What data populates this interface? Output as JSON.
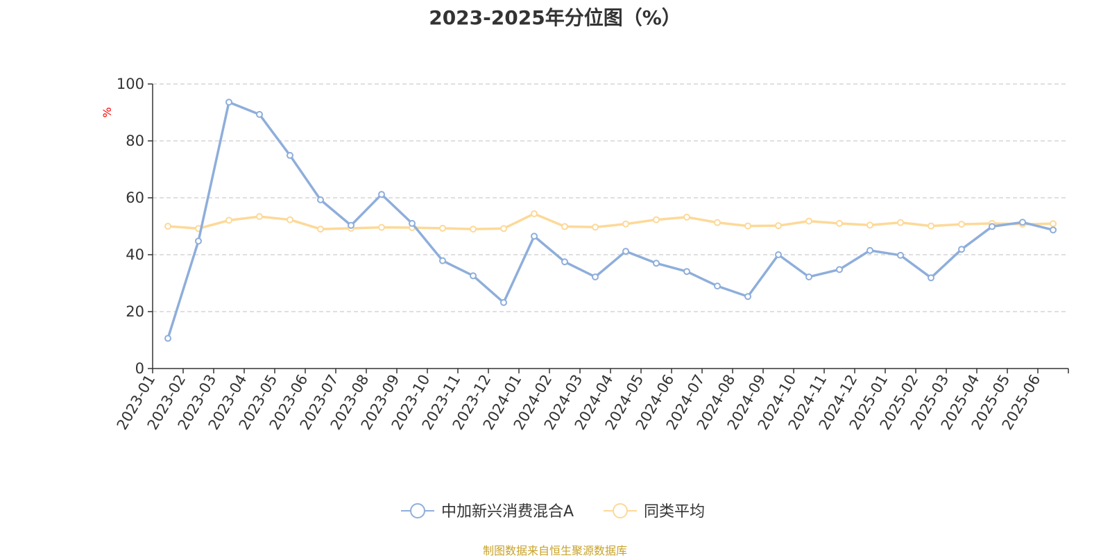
{
  "title": "2023-2025年分位图（%）",
  "source": "制图数据来自恒生聚源数据库",
  "colors": {
    "series1": "#8eaedb",
    "series2": "#fdd998",
    "grid": "#cccccc",
    "axis": "#333333",
    "unit": "#ff0000",
    "source": "#c9a227"
  },
  "chart_data": {
    "type": "line",
    "unit_label": "%",
    "ylim": [
      0,
      100
    ],
    "yticks": [
      "0",
      "20",
      "40",
      "60",
      "80",
      "100"
    ],
    "grid": true,
    "legend_position": "bottom-center",
    "categories": [
      "2023-01",
      "2023-02",
      "2023-03",
      "2023-04",
      "2023-05",
      "2023-06",
      "2023-07",
      "2023-08",
      "2023-09",
      "2023-10",
      "2023-11",
      "2023-12",
      "2024-01",
      "2024-02",
      "2024-03",
      "2024-04",
      "2024-05",
      "2024-06",
      "2024-07",
      "2024-08",
      "2024-09",
      "2024-10",
      "2024-11",
      "2024-12",
      "2025-01",
      "2025-02",
      "2025-03",
      "2025-04",
      "2025-05",
      "2025-06"
    ],
    "series": [
      {
        "name": "中加新兴消费混合A",
        "color": "#8eaedb",
        "values": [
          10.6,
          44.8,
          93.6,
          89.3,
          74.9,
          59.3,
          50.3,
          61.2,
          51.0,
          37.9,
          32.6,
          23.2,
          46.5,
          37.5,
          32.2,
          41.2,
          37.0,
          34.1,
          29.0,
          25.3,
          40.0,
          32.2,
          34.8,
          41.5,
          39.8,
          31.9,
          41.9,
          49.9,
          51.4,
          48.7
        ]
      },
      {
        "name": "同类平均",
        "color": "#fdd998",
        "values": [
          50.0,
          49.2,
          52.1,
          53.4,
          52.3,
          49.0,
          49.3,
          49.6,
          49.5,
          49.3,
          49.0,
          49.2,
          54.4,
          49.9,
          49.7,
          50.8,
          52.3,
          53.2,
          51.3,
          50.1,
          50.2,
          51.8,
          51.0,
          50.4,
          51.3,
          50.1,
          50.7,
          51.0,
          50.7,
          50.9
        ]
      }
    ]
  }
}
